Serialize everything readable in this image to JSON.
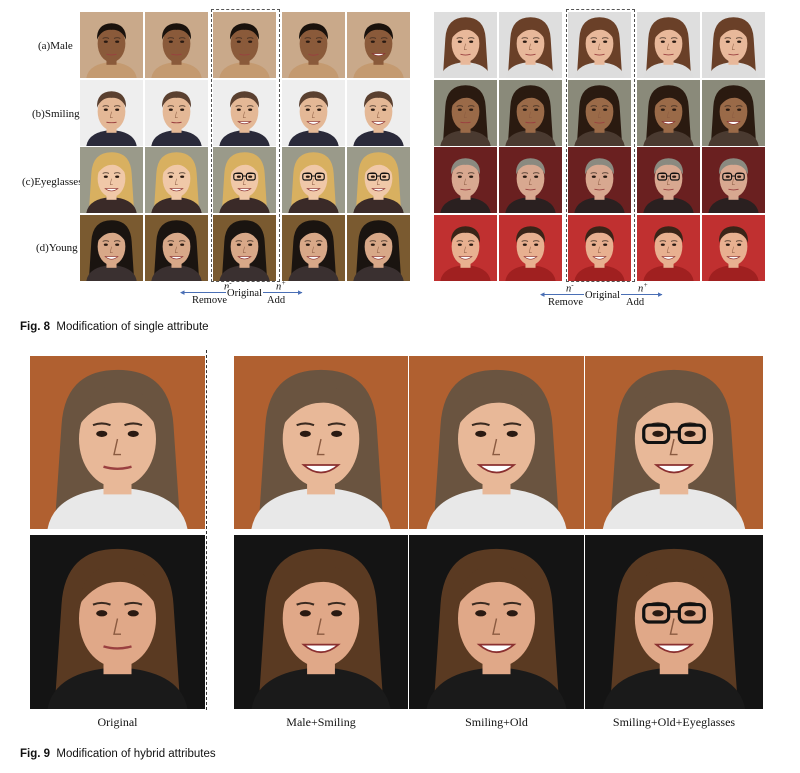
{
  "figure8": {
    "row_labels": [
      "(a)Male",
      "(b)Smiling",
      "(c)Eyeglasses",
      "(d)Young"
    ],
    "axis": {
      "neg_symbol": "n",
      "neg_sup": "-",
      "pos_symbol": "n",
      "pos_sup": "+",
      "remove_label": "Remove",
      "original_label": "Original",
      "add_label": "Add"
    },
    "caption_number": "Fig. 8",
    "caption_text": "Modification of single attribute"
  },
  "figure9": {
    "column_labels": [
      "Original",
      "Male+Smiling",
      "Smiling+Old",
      "Smiling+Old+Eyeglasses"
    ],
    "caption_number": "Fig. 9",
    "caption_text": "Modification of hybrid attributes"
  }
}
